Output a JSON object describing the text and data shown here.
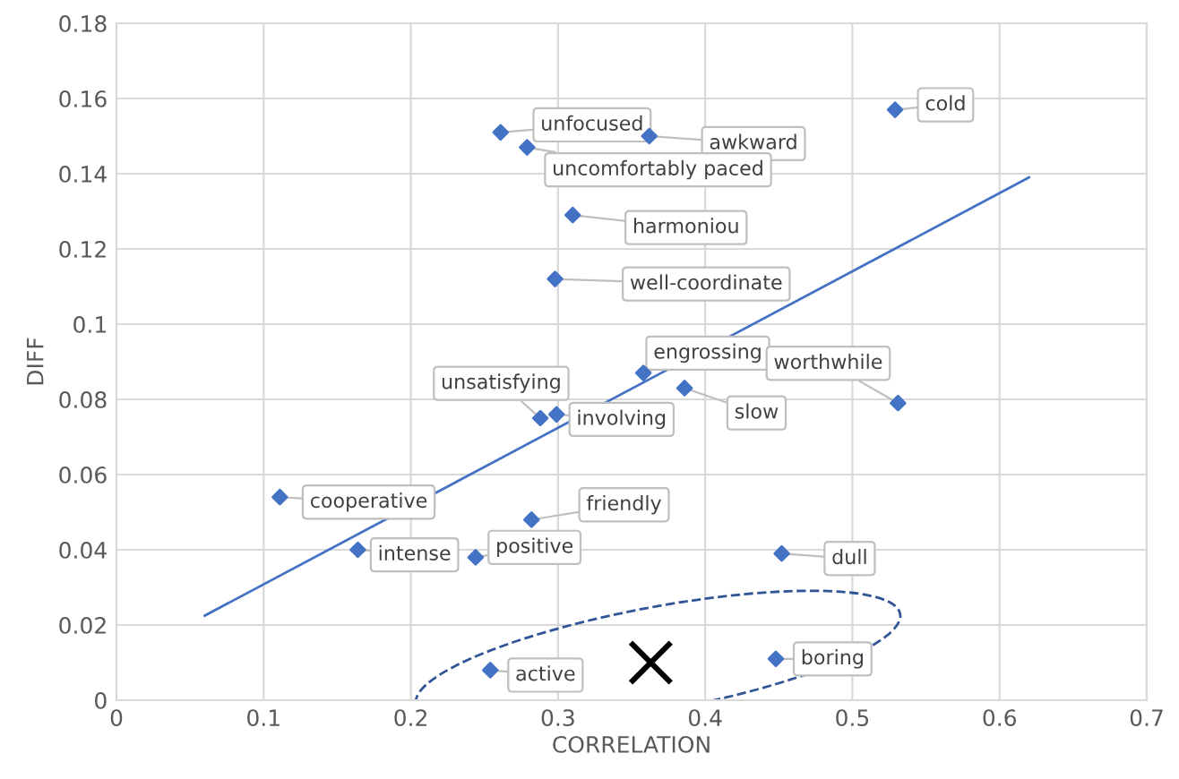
{
  "chart_data": {
    "type": "scatter",
    "xlabel": "CORRELATION",
    "ylabel": "DIFF",
    "xlim": [
      0,
      0.7
    ],
    "ylim": [
      0,
      0.18
    ],
    "xticks": [
      0,
      0.1,
      0.2,
      0.3,
      0.4,
      0.5,
      0.6,
      0.7
    ],
    "yticks": [
      0,
      0.02,
      0.04,
      0.06,
      0.08,
      0.1,
      0.12,
      0.14,
      0.16,
      0.18
    ],
    "grid": true,
    "series": [
      {
        "color": "#4472c4",
        "marker": "diamond",
        "x": [
          0.261,
          0.362,
          0.279,
          0.529,
          0.31,
          0.298,
          0.358,
          0.386,
          0.531,
          0.288,
          0.299,
          0.111,
          0.282,
          0.164,
          0.244,
          0.452,
          0.448,
          0.254
        ],
        "values": [
          0.151,
          0.15,
          0.147,
          0.157,
          0.129,
          0.112,
          0.087,
          0.083,
          0.079,
          0.075,
          0.076,
          0.054,
          0.048,
          0.04,
          0.038,
          0.039,
          0.011,
          0.008
        ]
      },
      {
        "type": "line",
        "color": "#4472c4",
        "marker": "none",
        "line_style": "solid",
        "x": [
          0.06,
          0.62
        ],
        "values": [
          0.0225,
          0.139
        ]
      },
      {
        "type": "scatter",
        "color": "#000000",
        "marker": "cross",
        "x": [
          0.363
        ],
        "values": [
          0.01
        ]
      }
    ],
    "annotations": [
      {
        "text": "unfocused",
        "x": 0.261,
        "y": 0.151
      },
      {
        "text": "awkward",
        "x": 0.362,
        "y": 0.15
      },
      {
        "text": "uncomfortably paced",
        "x": 0.279,
        "y": 0.147
      },
      {
        "text": "cold",
        "x": 0.529,
        "y": 0.157
      },
      {
        "text": "harmoniou",
        "x": 0.31,
        "y": 0.129
      },
      {
        "text": "well-coordinate",
        "x": 0.298,
        "y": 0.112
      },
      {
        "text": "engrossing",
        "x": 0.358,
        "y": 0.087
      },
      {
        "text": "slow",
        "x": 0.386,
        "y": 0.083
      },
      {
        "text": "worthwhile",
        "x": 0.531,
        "y": 0.079
      },
      {
        "text": "unsatisfying",
        "x": 0.288,
        "y": 0.075
      },
      {
        "text": "involving",
        "x": 0.299,
        "y": 0.076
      },
      {
        "text": "cooperative",
        "x": 0.111,
        "y": 0.054
      },
      {
        "text": "friendly",
        "x": 0.282,
        "y": 0.048
      },
      {
        "text": "intense",
        "x": 0.164,
        "y": 0.04
      },
      {
        "text": "positive",
        "x": 0.244,
        "y": 0.038
      },
      {
        "text": "dull",
        "x": 0.452,
        "y": 0.039
      },
      {
        "text": "boring",
        "x": 0.448,
        "y": 0.011
      },
      {
        "text": "active",
        "x": 0.254,
        "y": 0.008
      }
    ]
  }
}
